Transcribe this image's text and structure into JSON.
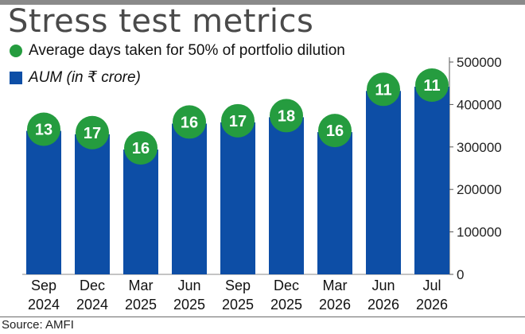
{
  "title": "Stress test metrics",
  "legend": {
    "days_label": "Average days taken for 50% of portfolio dilution",
    "aum_label": "AUM (in ₹ crore)"
  },
  "source": "Source: AMFI",
  "colors": {
    "bar": "#0d4ea6",
    "bubble": "#259c3f",
    "header_bar": "#8a8a8a"
  },
  "chart_data": {
    "type": "bar",
    "categories": [
      [
        "Sep",
        "2024"
      ],
      [
        "Dec",
        "2024"
      ],
      [
        "Mar",
        "2025"
      ],
      [
        "Jun",
        "2025"
      ],
      [
        "Sep",
        "2025"
      ],
      [
        "Dec",
        "2025"
      ],
      [
        "Mar",
        "2026"
      ],
      [
        "Jun",
        "2026"
      ],
      [
        "Jul",
        "2026"
      ]
    ],
    "series": [
      {
        "name": "AUM (in ₹ crore)",
        "values": [
          338000,
          330000,
          294000,
          355000,
          358000,
          370000,
          335000,
          432000,
          442000
        ]
      },
      {
        "name": "Average days taken for 50% of portfolio dilution",
        "values": [
          13,
          17,
          16,
          16,
          17,
          18,
          16,
          11,
          11
        ]
      }
    ],
    "yaxis": {
      "position": "right",
      "ylim": [
        0,
        500000
      ],
      "ticks": [
        0,
        100000,
        200000,
        300000,
        400000,
        500000
      ]
    },
    "grid": false,
    "legend_position": "top-left"
  }
}
